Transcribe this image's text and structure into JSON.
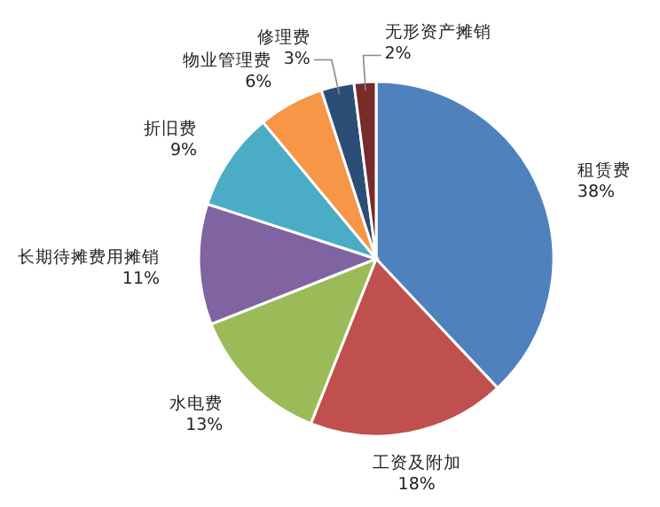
{
  "chart_data": {
    "type": "pie",
    "categories": [
      "租赁费",
      "工资及附加",
      "水电费",
      "长期待摊费用摊销",
      "折旧费",
      "物业管理费",
      "修理费",
      "无形资产摊销"
    ],
    "values": [
      38,
      18,
      13,
      11,
      9,
      6,
      3,
      2
    ],
    "colors": [
      "#4f81bd",
      "#c0504d",
      "#9bbb59",
      "#8064a2",
      "#4bacc6",
      "#f79646",
      "#2c4d75",
      "#772c2a"
    ],
    "value_labels": [
      "38%",
      "18%",
      "13%",
      "11%",
      "9%",
      "6%",
      "3%",
      "2%"
    ]
  }
}
